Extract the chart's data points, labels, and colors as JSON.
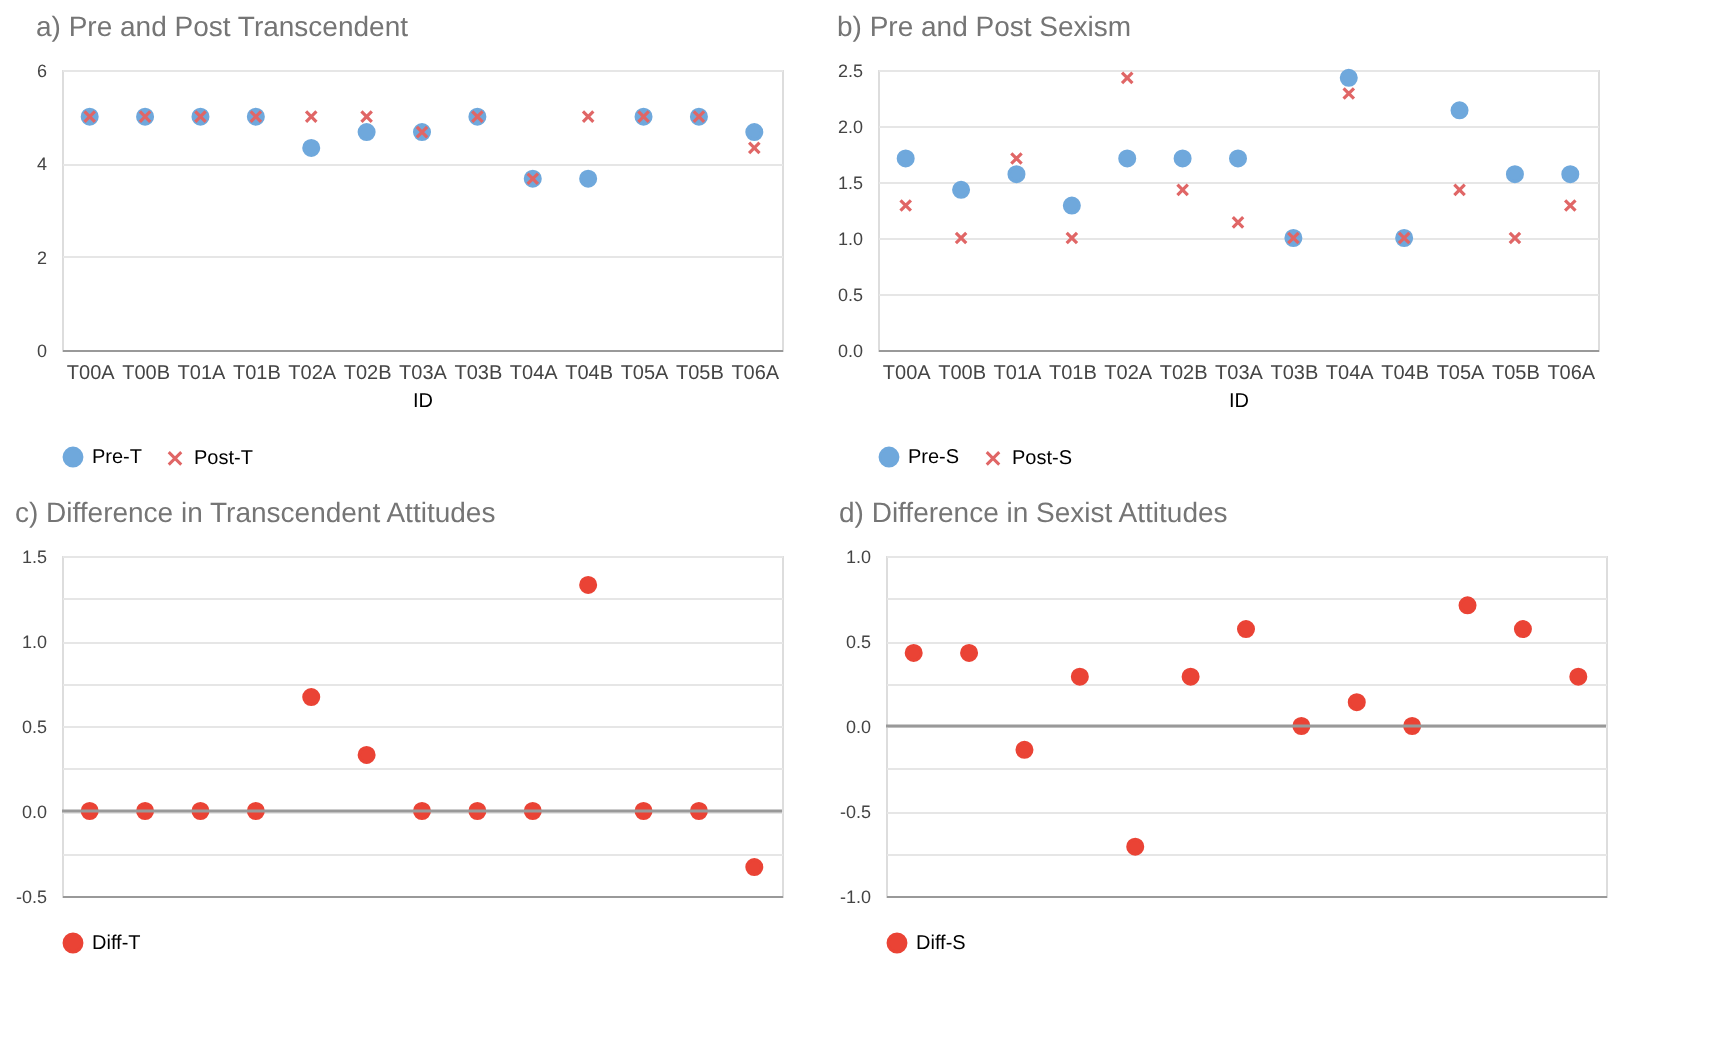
{
  "chart_data": [
    {
      "type": "scatter",
      "title": "a) Pre and Post Transcendent",
      "xlabel": "ID",
      "categories": [
        "T00A",
        "T00B",
        "T01A",
        "T01B",
        "T02A",
        "T02B",
        "T03A",
        "T03B",
        "T04A",
        "T04B",
        "T05A",
        "T05B",
        "T06A"
      ],
      "series": [
        {
          "name": "Pre-T",
          "color": "#6fa8dc",
          "marker": "circle",
          "values": [
            5,
            5,
            5,
            5,
            4.33,
            4.67,
            4.67,
            5,
            3.67,
            3.67,
            5,
            5,
            4.67
          ]
        },
        {
          "name": "Post-T",
          "color": "#e06666",
          "marker": "cross",
          "values": [
            5,
            5,
            5,
            5,
            5,
            5,
            4.67,
            5,
            3.67,
            5,
            5,
            5,
            4.33
          ]
        }
      ],
      "ylim": [
        0,
        6
      ],
      "yticks": [
        0,
        2,
        4,
        6
      ],
      "grid": "y",
      "legend": "bottom"
    },
    {
      "type": "scatter",
      "title": "b) Pre and Post Sexism",
      "xlabel": "ID",
      "categories": [
        "T00A",
        "T00B",
        "T01A",
        "T01B",
        "T02A",
        "T02B",
        "T03A",
        "T03B",
        "T04A",
        "T04B",
        "T05A",
        "T05B",
        "T06A"
      ],
      "series": [
        {
          "name": "Pre-S",
          "color": "#6fa8dc",
          "marker": "circle",
          "values": [
            1.71,
            1.43,
            1.57,
            1.29,
            1.71,
            1.71,
            1.71,
            1.0,
            2.43,
            1.0,
            2.14,
            1.57,
            1.57
          ]
        },
        {
          "name": "Post-S",
          "color": "#e06666",
          "marker": "cross",
          "values": [
            1.29,
            1.0,
            1.71,
            1.0,
            2.43,
            1.43,
            1.14,
            1.0,
            2.29,
            1.0,
            1.43,
            1.0,
            1.29
          ]
        }
      ],
      "ylim": [
        0,
        2.5
      ],
      "yticks": [
        {
          "value": 0,
          "label": "0.0"
        },
        {
          "value": 0.5,
          "label": "0.5"
        },
        {
          "value": 1,
          "label": "1.0"
        },
        {
          "value": 1.5,
          "label": "1.5"
        },
        {
          "value": 2,
          "label": "2.0"
        },
        {
          "value": 2.5,
          "label": "2.5"
        }
      ],
      "grid": "y",
      "legend": "bottom"
    },
    {
      "type": "scatter",
      "title": "c) Difference in Transcendent Attitudes",
      "categories": [
        null,
        null,
        null,
        null,
        null,
        null,
        null,
        null,
        null,
        null,
        null,
        null,
        null
      ],
      "series": [
        {
          "name": "Diff-T",
          "color": "#ea4335",
          "marker": "circle",
          "values": [
            0,
            0,
            0,
            0,
            0.67,
            0.33,
            0,
            0,
            0,
            1.33,
            0,
            0,
            -0.33
          ]
        }
      ],
      "ylim": [
        -0.5,
        1.5
      ],
      "yticks": [
        {
          "value": -0.5,
          "label": "-0.5"
        },
        {
          "value": -0.25,
          "label": null
        },
        {
          "value": 0,
          "label": "0.0"
        },
        {
          "value": 0.25,
          "label": null
        },
        {
          "value": 0.5,
          "label": "0.5"
        },
        {
          "value": 0.75,
          "label": null
        },
        {
          "value": 1,
          "label": "1.0"
        },
        {
          "value": 1.25,
          "label": null
        },
        {
          "value": 1.5,
          "label": "1.5"
        }
      ],
      "ref_lines": [
        {
          "axis": "y",
          "value": 0,
          "color": "#999999"
        }
      ],
      "tick_labels": "y",
      "grid": "y",
      "legend": "bottom"
    },
    {
      "type": "scatter",
      "title": "d) Difference in Sexist Attitudes",
      "categories": [
        null,
        null,
        null,
        null,
        null,
        null,
        null,
        null,
        null,
        null,
        null,
        null,
        null
      ],
      "series": [
        {
          "name": "Diff-S",
          "color": "#ea4335",
          "marker": "circle",
          "values": [
            0.43,
            0.43,
            -0.14,
            0.29,
            -0.71,
            0.29,
            0.57,
            0,
            0.14,
            0,
            0.71,
            0.57,
            0.29
          ]
        }
      ],
      "ylim": [
        -1,
        1
      ],
      "yticks": [
        {
          "value": -1,
          "label": "-1.0"
        },
        {
          "value": -0.75,
          "label": null
        },
        {
          "value": -0.5,
          "label": "-0.5"
        },
        {
          "value": -0.25,
          "label": null
        },
        {
          "value": 0,
          "label": "0.0"
        },
        {
          "value": 0.25,
          "label": null
        },
        {
          "value": 0.5,
          "label": "0.5"
        },
        {
          "value": 0.75,
          "label": null
        },
        {
          "value": 1,
          "label": "1.0"
        }
      ],
      "ref_lines": [
        {
          "axis": "y",
          "value": 0,
          "color": "#999999"
        }
      ],
      "tick_labels": "y",
      "grid": "y",
      "legend": "bottom"
    }
  ]
}
